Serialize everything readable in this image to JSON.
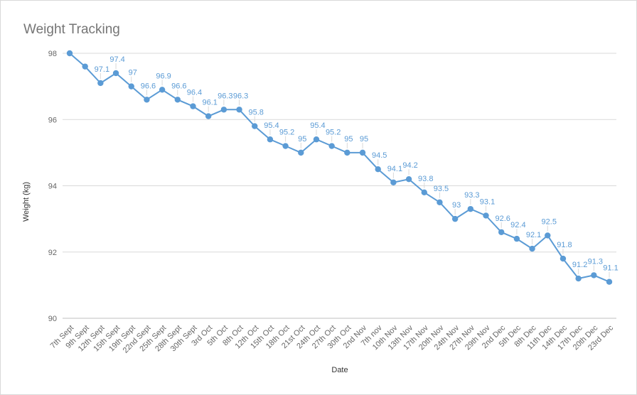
{
  "chart_data": {
    "type": "line",
    "title": "Weight Tracking",
    "xlabel": "Date",
    "ylabel": "Weight (kg)",
    "ylim": [
      90,
      98
    ],
    "yticks": [
      90,
      92,
      94,
      96,
      98
    ],
    "grid": true,
    "legend": "none",
    "colors": {
      "series": "#5b9bd5",
      "label": "#5b9bd5",
      "grid": "#d9d9d9",
      "axis": "#bfbfbf"
    },
    "categories": [
      "7th Sept",
      "9th Sept",
      "12th Sept",
      "15th Sept",
      "19th Sept",
      "22nd Sept",
      "25th Sept",
      "28th Sept",
      "30th Sept",
      "3rd Oct",
      "5th Oct",
      "8th Oct",
      "12th Oct",
      "15th Oct",
      "18th Oct",
      "21st Oct",
      "24th Oct",
      "27th Oct",
      "30th Oct",
      "2nd Nov",
      "7th nov",
      "10th Nov",
      "13th Nov",
      "17th Nov",
      "20th Nov",
      "24th Nov",
      "27th Nov",
      "29th Nov",
      "2nd Dec",
      "5th Dec",
      "8th Dec",
      "11th Dec",
      "14th Dec",
      "17th Dec",
      "20th Dec",
      "23rd Dec"
    ],
    "series": [
      {
        "values": [
          98,
          97.6,
          97.1,
          97.4,
          97,
          96.6,
          96.9,
          96.6,
          96.4,
          96.1,
          96.3,
          96.3,
          95.8,
          95.4,
          95.2,
          95,
          95.4,
          95.2,
          95,
          95,
          94.5,
          94.1,
          94.2,
          93.8,
          93.5,
          93,
          93.3,
          93.1,
          92.6,
          92.4,
          92.1,
          92.5,
          91.8,
          91.2,
          91.3,
          91.1
        ],
        "data_labels": [
          "",
          "",
          "97.1",
          "97.4",
          "97",
          "96.6",
          "96.9",
          "96.6",
          "96.4",
          "96.1",
          "96.3",
          "96.3",
          "95.8",
          "95.4",
          "95.2",
          "95",
          "95.4",
          "95.2",
          "95",
          "95",
          "94.5",
          "94.1",
          "94.2",
          "93.8",
          "93.5",
          "93",
          "93.3",
          "93.1",
          "92.6",
          "92.4",
          "92.1",
          "92.5",
          "91.8",
          "91.2",
          "91.3",
          "91.1"
        ]
      }
    ]
  }
}
